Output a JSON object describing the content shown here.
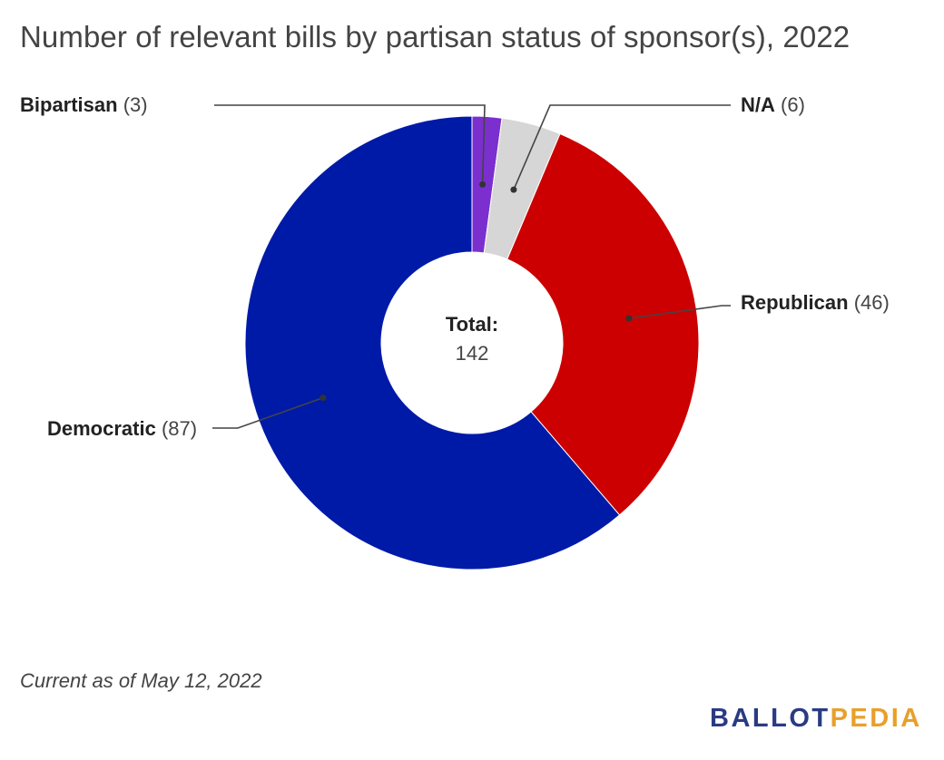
{
  "chart_data": {
    "type": "pie",
    "variant": "donut",
    "title": "Number of relevant bills by partisan status of sponsor(s), 2022",
    "center_label": "Total:",
    "center_value": "142",
    "slices": [
      {
        "name": "Bipartisan",
        "value": 3,
        "color": "#7b2fcf",
        "label_count": "(3)"
      },
      {
        "name": "N/A",
        "value": 6,
        "color": "#d6d6d6",
        "label_count": "(6)"
      },
      {
        "name": "Republican",
        "value": 46,
        "color": "#cc0000",
        "label_count": "(46)"
      },
      {
        "name": "Democratic",
        "value": 87,
        "color": "#001aa8",
        "label_count": "(87)"
      }
    ],
    "footnote": "Current as of May 12, 2022"
  },
  "brand": {
    "part1": "BALLOT",
    "part2": "PEDIA",
    "color1": "#2a3b84",
    "color2": "#e8a02b"
  }
}
